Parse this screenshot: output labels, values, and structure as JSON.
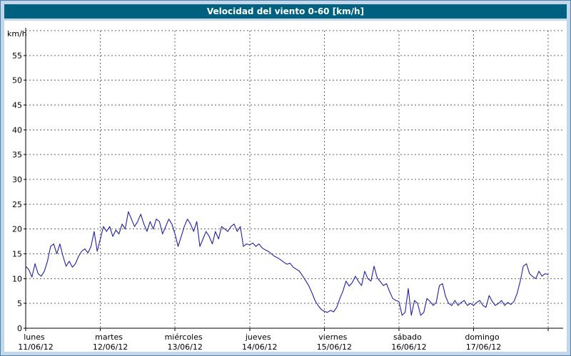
{
  "header": {
    "title": "Velocidad del viento 0-60 [km/h]"
  },
  "colors": {
    "header_bg": "#006080",
    "frame_bg": "#c2d8ea",
    "frame_border": "#4e81ad",
    "grid": "#666666",
    "line": "#2121a8"
  },
  "chart_data": {
    "type": "line",
    "title": "Velocidad del viento 0-60 [km/h]",
    "ylabel": "km/h",
    "ylim": [
      0,
      60
    ],
    "y_tick_step": 5,
    "xlim": [
      0,
      7.2
    ],
    "grid": "dashed",
    "legend": "none",
    "line_color": "#2121a8",
    "days": [
      {
        "name": "lunes",
        "date": "11/06/12"
      },
      {
        "name": "martes",
        "date": "12/06/12"
      },
      {
        "name": "miércoles",
        "date": "13/06/12"
      },
      {
        "name": "jueves",
        "date": "14/06/12"
      },
      {
        "name": "viernes",
        "date": "15/06/12"
      },
      {
        "name": "sábado",
        "date": "16/06/12"
      },
      {
        "name": "domingo",
        "date": "17/06/12"
      }
    ],
    "series": [
      {
        "name": "velocidad del viento",
        "unit": "km/h",
        "sample_interval_hours": 1,
        "values": [
          12.5,
          11.8,
          10.3,
          13,
          11,
          10.5,
          11.5,
          13.5,
          16.5,
          17,
          15,
          17,
          14.5,
          12.5,
          13.5,
          12.3,
          13,
          14.5,
          15.5,
          16,
          15.2,
          16.5,
          19.5,
          15.5,
          18,
          20.5,
          19.5,
          20.5,
          18.5,
          19.8,
          19,
          21,
          20,
          23.5,
          22,
          20.5,
          21.5,
          23,
          21,
          19.5,
          21.5,
          20,
          22,
          21.5,
          19,
          20.5,
          22,
          21,
          19,
          16.5,
          18.5,
          20.5,
          22,
          21,
          19.5,
          21.5,
          16.5,
          18,
          19.5,
          18.5,
          17,
          19.5,
          18,
          20.5,
          20,
          19.5,
          20.5,
          21,
          19.5,
          20.5,
          16.5,
          17,
          16.8,
          17.2,
          16.5,
          17,
          16.2,
          15.8,
          15.5,
          15,
          14.5,
          14.2,
          13.8,
          13.3,
          12.9,
          13.1,
          12.3,
          11.9,
          11.5,
          10.6,
          9.6,
          8.6,
          7.2,
          5.6,
          4.6,
          3.8,
          3.4,
          3.2,
          3.6,
          3.3,
          4.2,
          6,
          7.5,
          9.5,
          8.5,
          9.2,
          10.5,
          9.4,
          8.6,
          11.5,
          10,
          9.5,
          12.5,
          10.2,
          9.4,
          8.6,
          9,
          7.4,
          6,
          5.6,
          5.4,
          2.6,
          3.2,
          8,
          2.6,
          5.6,
          5,
          2.6,
          3.2,
          6,
          5.4,
          4.6,
          5.2,
          8.6,
          9,
          6.4,
          5,
          4.6,
          5.6,
          4.6,
          5.2,
          5.6,
          4.6,
          5,
          4.6,
          5.2,
          5.6,
          4.6,
          4.2,
          6.6,
          5.4,
          4.6,
          5,
          5.6,
          4.6,
          5.2,
          4.8,
          5.4,
          7,
          9.5,
          12.5,
          13,
          11,
          10.4,
          10,
          11.5,
          10.5,
          11,
          10.8
        ]
      }
    ]
  }
}
